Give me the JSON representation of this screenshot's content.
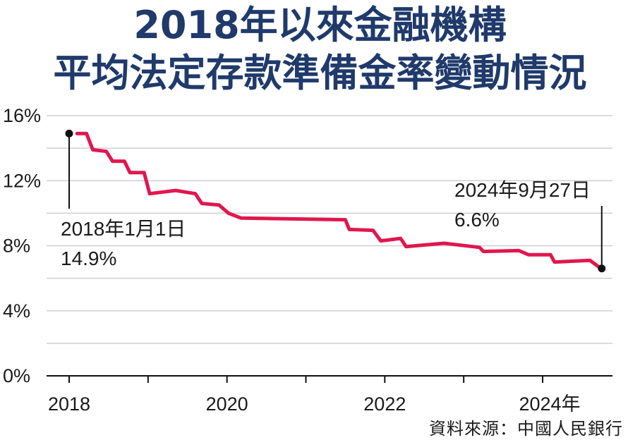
{
  "title": {
    "line1": "2018年以來金融機構",
    "line2": "平均法定存款準備金率變動情況"
  },
  "source": "資料來源：中國人民銀行",
  "colors": {
    "line": "#e0174f",
    "title": "#1f3a6b",
    "grid": "#cfcfcf",
    "axis": "#111111",
    "marker": "#111111"
  },
  "chart_data": {
    "type": "line",
    "ylim": [
      0,
      16
    ],
    "y_ticks": [
      "0%",
      "4%",
      "8%",
      "12%",
      "16%"
    ],
    "y_tick_values": [
      0,
      4,
      8,
      12,
      16
    ],
    "x_ticks": [
      "2018",
      "2020",
      "2022",
      "2024年"
    ],
    "x_tick_values": [
      2018,
      2020,
      2022,
      2024
    ],
    "grid": true,
    "series": [
      {
        "points": [
          [
            2018.1,
            14.9
          ],
          [
            2018.22,
            14.9
          ],
          [
            2018.3,
            13.9
          ],
          [
            2018.47,
            13.8
          ],
          [
            2018.55,
            13.2
          ],
          [
            2018.7,
            13.2
          ],
          [
            2018.77,
            12.5
          ],
          [
            2018.95,
            12.5
          ],
          [
            2019.02,
            11.2
          ],
          [
            2019.35,
            11.4
          ],
          [
            2019.6,
            11.2
          ],
          [
            2019.68,
            10.6
          ],
          [
            2019.9,
            10.5
          ],
          [
            2020.02,
            10.0
          ],
          [
            2020.18,
            9.7
          ],
          [
            2021.5,
            9.6
          ],
          [
            2021.55,
            9.0
          ],
          [
            2021.85,
            8.95
          ],
          [
            2021.95,
            8.3
          ],
          [
            2022.2,
            8.45
          ],
          [
            2022.27,
            7.95
          ],
          [
            2022.75,
            8.15
          ],
          [
            2023.2,
            7.9
          ],
          [
            2023.25,
            7.65
          ],
          [
            2023.7,
            7.7
          ],
          [
            2023.82,
            7.45
          ],
          [
            2024.1,
            7.45
          ],
          [
            2024.15,
            7.0
          ],
          [
            2024.6,
            7.1
          ],
          [
            2024.74,
            6.6
          ]
        ]
      }
    ],
    "annotations": [
      {
        "date": "2018年1月1日",
        "value": "14.9%",
        "x": 2018.0,
        "y": 14.9
      },
      {
        "date": "2024年9月27日",
        "value": "6.6%",
        "x": 2024.74,
        "y": 6.6
      }
    ]
  }
}
